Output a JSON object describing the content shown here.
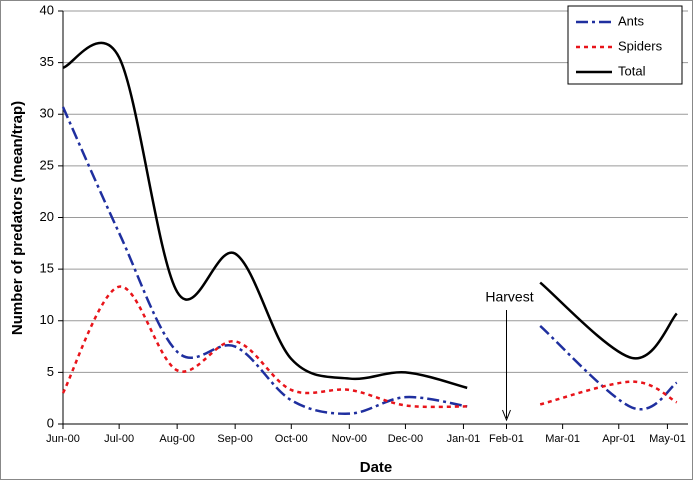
{
  "chart_data": {
    "type": "line",
    "y_label": "Number of predators (mean/trap)",
    "x_label": "Date",
    "x": [
      0,
      30,
      61,
      92,
      122,
      153,
      183,
      216,
      235,
      255,
      304,
      328
    ],
    "series": [
      {
        "name": "Ants",
        "color": "#1f2f9f",
        "style": "dash-dot",
        "values": [
          30.7,
          18.5,
          7,
          7.5,
          2.3,
          1,
          2.6,
          1.7,
          null,
          9.5,
          1.6,
          4
        ]
      },
      {
        "name": "Spiders",
        "color": "#e8141a",
        "style": "dotted",
        "values": [
          3,
          13.3,
          5.2,
          8,
          3.3,
          3.3,
          1.8,
          1.7,
          null,
          1.9,
          4.1,
          2.1
        ]
      },
      {
        "name": "Total",
        "color": "#000000",
        "style": "solid",
        "values": [
          34.5,
          35.5,
          12.8,
          16.5,
          6.3,
          4.4,
          5,
          3.5,
          null,
          13.7,
          6.4,
          10.7
        ]
      }
    ],
    "xlim": [
      0,
      334
    ],
    "xticks": [
      {
        "value": 0,
        "label": "Jun-00"
      },
      {
        "value": 30,
        "label": "Jul-00"
      },
      {
        "value": 61,
        "label": "Aug-00"
      },
      {
        "value": 92,
        "label": "Sep-00"
      },
      {
        "value": 122,
        "label": "Oct-00"
      },
      {
        "value": 153,
        "label": "Nov-00"
      },
      {
        "value": 183,
        "label": "Dec-00"
      },
      {
        "value": 214,
        "label": "Jan-01"
      },
      {
        "value": 237,
        "label": "Feb-01"
      },
      {
        "value": 267,
        "label": "Mar-01"
      },
      {
        "value": 297,
        "label": "Apr-01"
      },
      {
        "value": 323,
        "label": "May-01"
      }
    ],
    "ylim": [
      0,
      40
    ],
    "yticks": [
      0,
      5,
      10,
      15,
      20,
      25,
      30,
      35,
      40
    ],
    "grid": true,
    "legend": "top-right",
    "annotation": {
      "label": "Harvest",
      "x": 237
    }
  }
}
